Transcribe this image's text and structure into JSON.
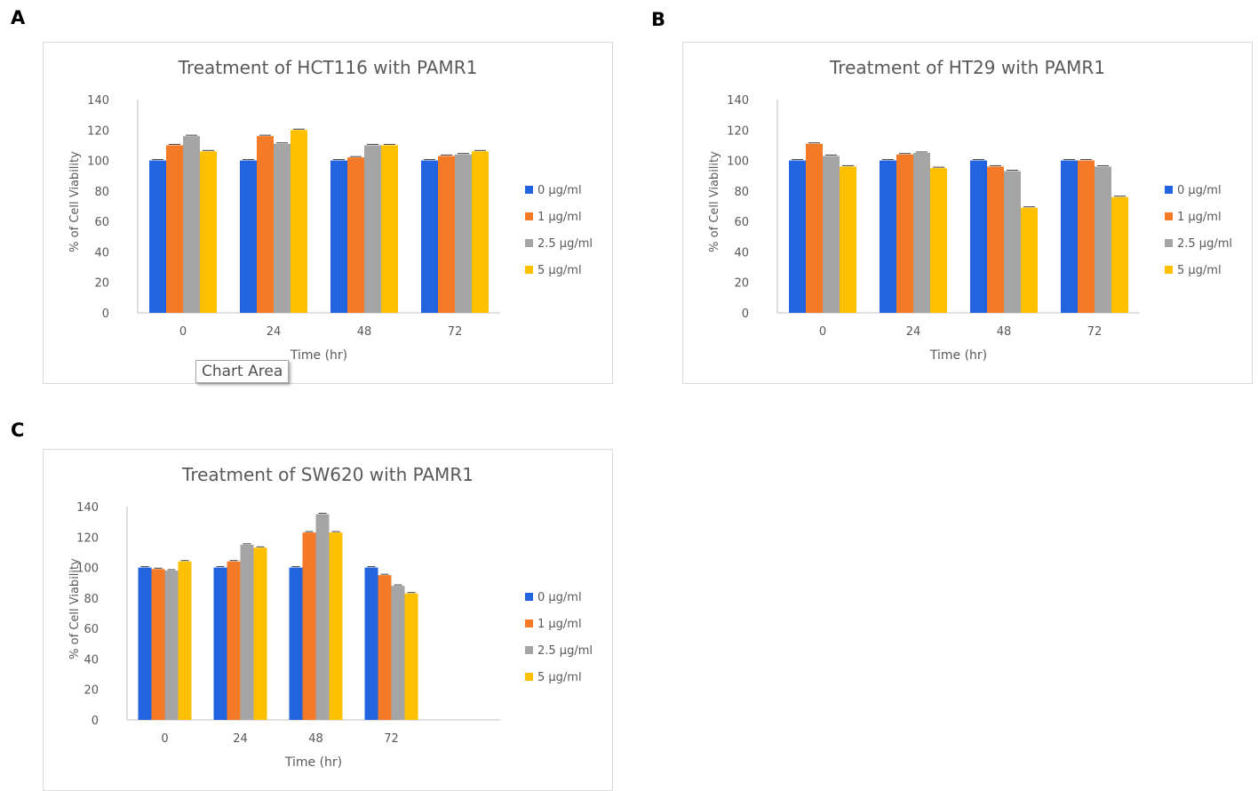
{
  "panels": [
    "A",
    "B",
    "C"
  ],
  "tooltip": "Chart Area",
  "legend_colors": [
    "#2264e0",
    "#f57a28",
    "#a5a5a5",
    "#ffc000"
  ],
  "chart_data": [
    {
      "type": "bar",
      "title": "Treatment of HCT116 with PAMR1",
      "xlabel": "Time (hr)",
      "ylabel": "% of Cell Viability",
      "ylim": [
        0,
        140
      ],
      "yticks": [
        "0",
        "20",
        "40",
        "60",
        "80",
        "100",
        "120",
        "140"
      ],
      "categories": [
        "0",
        "24",
        "48",
        "72"
      ],
      "legend_position": "right",
      "series": [
        {
          "name": "0  μg/ml",
          "values": [
            100,
            100,
            100,
            100
          ]
        },
        {
          "name": "1  μg/ml",
          "values": [
            110,
            116,
            102,
            103
          ]
        },
        {
          "name": "2.5  μg/ml",
          "values": [
            116,
            111,
            110,
            104
          ]
        },
        {
          "name": "5  μg/ml",
          "values": [
            106,
            120,
            110,
            106
          ]
        }
      ]
    },
    {
      "type": "bar",
      "title": "Treatment of HT29 with PAMR1",
      "xlabel": "Time (hr)",
      "ylabel": "% of Cell Viability",
      "ylim": [
        0,
        140
      ],
      "yticks": [
        "0",
        "20",
        "40",
        "60",
        "80",
        "100",
        "120",
        "140"
      ],
      "categories": [
        "0",
        "24",
        "48",
        "72"
      ],
      "legend_position": "right",
      "series": [
        {
          "name": "0  μg/ml",
          "values": [
            100,
            100,
            100,
            100
          ]
        },
        {
          "name": "1  μg/ml",
          "values": [
            111,
            104,
            96,
            100
          ]
        },
        {
          "name": "2.5  μg/ml",
          "values": [
            103,
            105,
            93,
            96
          ]
        },
        {
          "name": "5  μg/ml",
          "values": [
            96,
            95,
            69,
            76
          ]
        }
      ]
    },
    {
      "type": "bar",
      "title": "Treatment of SW620 with PAMR1",
      "xlabel": "Time (hr)",
      "ylabel": "% of Cell Viability",
      "ylim": [
        0,
        140
      ],
      "yticks": [
        "0",
        "20",
        "40",
        "60",
        "80",
        "100",
        "120",
        "140"
      ],
      "categories": [
        "0",
        "24",
        "48",
        "72"
      ],
      "legend_position": "right",
      "series": [
        {
          "name": "0  μg/ml",
          "values": [
            100,
            100,
            100,
            100
          ]
        },
        {
          "name": "1  μg/ml",
          "values": [
            99,
            104,
            123,
            95
          ]
        },
        {
          "name": "2.5  μg/ml",
          "values": [
            98,
            115,
            135,
            88
          ]
        },
        {
          "name": "5  μg/ml",
          "values": [
            104,
            113,
            123,
            83
          ]
        }
      ]
    }
  ]
}
